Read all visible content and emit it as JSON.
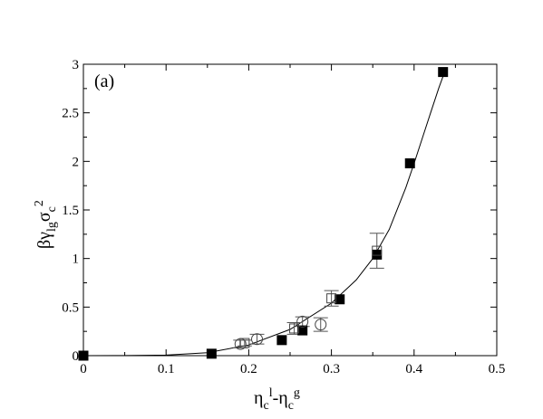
{
  "chart_data": {
    "type": "scatter",
    "panel_label": "(a)",
    "xlim": [
      0,
      0.5
    ],
    "ylim": [
      0,
      3
    ],
    "x_ticks": [
      0,
      0.1,
      0.2,
      0.3,
      0.4,
      0.5
    ],
    "x_tick_labels": [
      "0",
      "0.1",
      "0.2",
      "0.3",
      "0.4",
      "0.5"
    ],
    "y_ticks": [
      0,
      0.5,
      1,
      1.5,
      2,
      2.5,
      3
    ],
    "y_tick_labels": [
      "0",
      "0.5",
      "1",
      "1.5",
      "2",
      "2.5",
      "3"
    ],
    "xlabel": {
      "parts": [
        {
          "text": "η",
          "shift": "base"
        },
        {
          "text": "c",
          "shift": "sub"
        },
        {
          "text": "l",
          "shift": "sup"
        },
        {
          "text": "-η",
          "shift": "base"
        },
        {
          "text": "c",
          "shift": "sub"
        },
        {
          "text": "g",
          "shift": "sup"
        }
      ]
    },
    "ylabel": {
      "parts": [
        {
          "text": "βγ",
          "shift": "base"
        },
        {
          "text": "lg",
          "shift": "sub"
        },
        {
          "text": "σ",
          "shift": "base"
        },
        {
          "text": "c",
          "shift": "sub"
        },
        {
          "text": "2",
          "shift": "sup"
        }
      ]
    },
    "series": [
      {
        "marker": "filled-square",
        "points": [
          {
            "x": 0.0,
            "y": 0.0
          },
          {
            "x": 0.155,
            "y": 0.02
          },
          {
            "x": 0.24,
            "y": 0.16
          },
          {
            "x": 0.265,
            "y": 0.26
          },
          {
            "x": 0.31,
            "y": 0.58
          },
          {
            "x": 0.355,
            "y": 1.04
          },
          {
            "x": 0.395,
            "y": 1.98
          },
          {
            "x": 0.435,
            "y": 2.92
          }
        ]
      },
      {
        "marker": "open-square",
        "points": [
          {
            "x": 0.195,
            "y": 0.13,
            "err": 0.03
          },
          {
            "x": 0.255,
            "y": 0.28,
            "err": 0.06
          },
          {
            "x": 0.3,
            "y": 0.59,
            "err": 0.08
          },
          {
            "x": 0.355,
            "y": 1.08,
            "err": 0.18
          }
        ]
      },
      {
        "marker": "open-circle",
        "points": [
          {
            "x": 0.19,
            "y": 0.12,
            "err": 0.04
          },
          {
            "x": 0.21,
            "y": 0.17,
            "err": 0.05
          },
          {
            "x": 0.265,
            "y": 0.35,
            "err": 0.05
          },
          {
            "x": 0.287,
            "y": 0.32,
            "err": 0.07
          }
        ]
      }
    ],
    "fit_curve": {
      "x": [
        0,
        0.05,
        0.1,
        0.15,
        0.2,
        0.25,
        0.3,
        0.33,
        0.35,
        0.37,
        0.39,
        0.4,
        0.41,
        0.42,
        0.43,
        0.437
      ],
      "y": [
        0,
        0.001,
        0.006,
        0.03,
        0.11,
        0.27,
        0.54,
        0.78,
        1.0,
        1.3,
        1.73,
        1.98,
        2.24,
        2.5,
        2.76,
        2.92
      ]
    }
  }
}
